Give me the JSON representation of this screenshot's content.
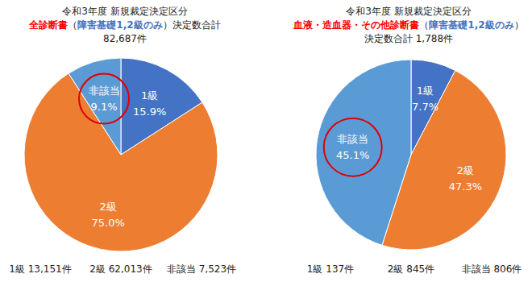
{
  "chart_data": [
    {
      "type": "pie",
      "title": "令和3年度 新規裁定決定区分",
      "subtitle": [
        "全診断書",
        "（",
        "障害基礎1,2級のみ",
        "）決定数合計"
      ],
      "total": {
        "value": 82687,
        "label": "82,687件"
      },
      "categories": [
        "1級",
        "2級",
        "非該当"
      ],
      "values": [
        15.9,
        75.0,
        9.1
      ],
      "value_labels": [
        "15.9%",
        "75.0%",
        "9.1%"
      ],
      "colors": [
        "#4472c4",
        "#ed7d31",
        "#5b9bd5"
      ],
      "data_labels": true,
      "counts": [
        {
          "value": 13151,
          "label": "1級 13,151件"
        },
        {
          "value": 62013,
          "label": "2級 62,013件"
        },
        {
          "value": 7523,
          "label": "非該当 7,523件"
        }
      ]
    },
    {
      "type": "pie",
      "title": "令和3年度 新規裁定決定区分",
      "subtitle": [
        "血液・造血器・その他診断書",
        "（",
        "障害基礎1,2級のみ",
        "）"
      ],
      "total": {
        "value": 1788,
        "label": "決定数合計 1,788件"
      },
      "categories": [
        "1級",
        "2級",
        "非該当"
      ],
      "values": [
        7.7,
        47.3,
        45.1
      ],
      "value_labels": [
        "7.7%",
        "47.3%",
        "45.1%"
      ],
      "colors": [
        "#4472c4",
        "#ed7d31",
        "#5b9bd5"
      ],
      "data_labels": true,
      "counts": [
        {
          "value": 137,
          "label": "1級 137件"
        },
        {
          "value": 845,
          "label": "2級 845件"
        },
        {
          "value": 806,
          "label": "非該当 806件"
        }
      ]
    }
  ]
}
